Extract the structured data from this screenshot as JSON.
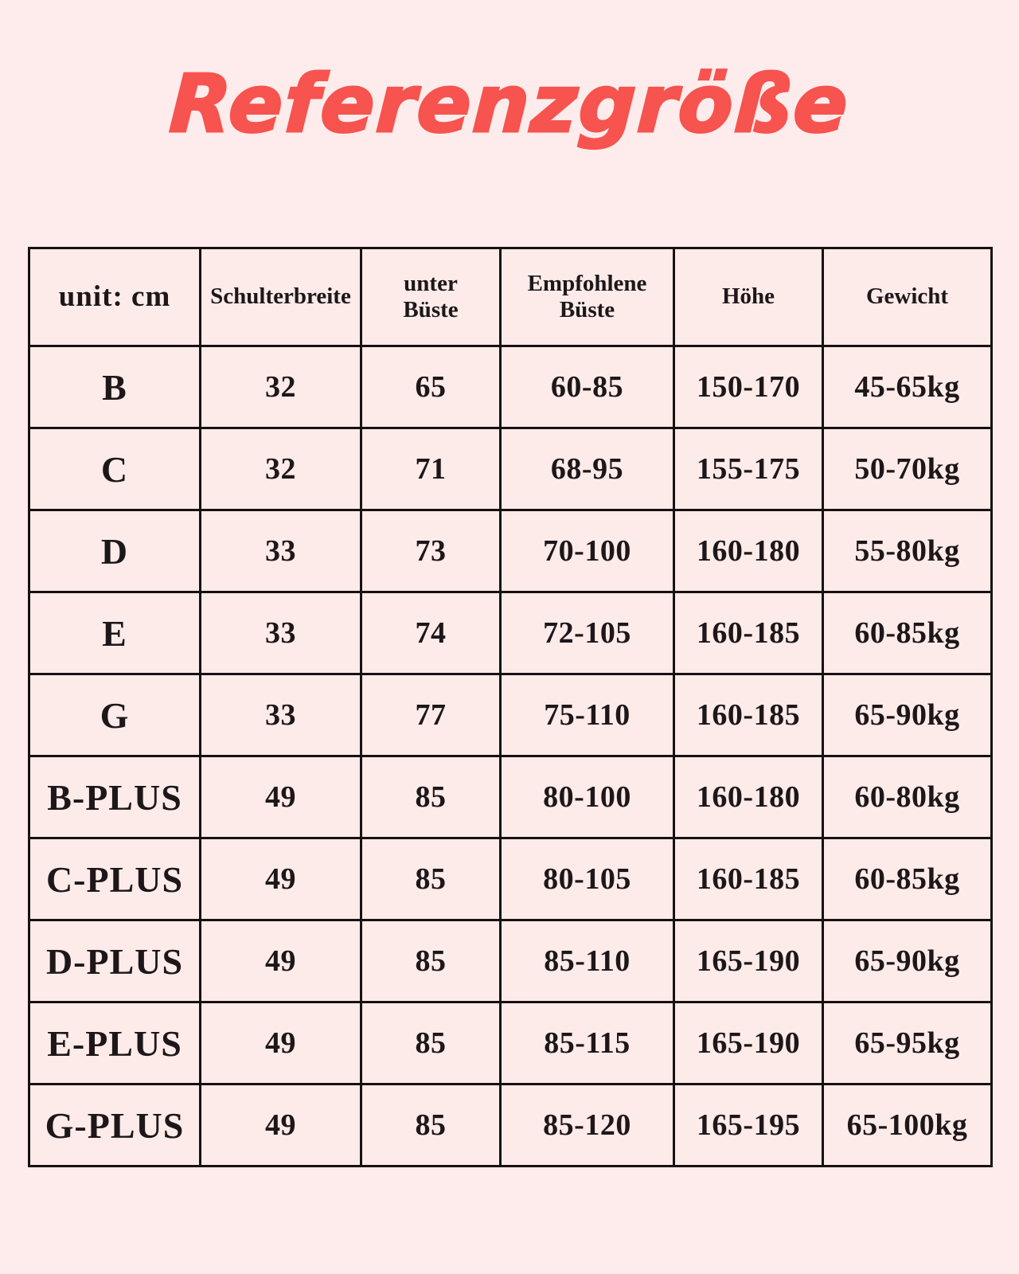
{
  "title": "Referenzgröße",
  "colors": {
    "page_background": "#fdeceb",
    "cell_background": "#fcebe9",
    "title_color": "#f7534f",
    "border_color": "#171112",
    "text_color": "#1d1719"
  },
  "table": {
    "headers": [
      "unit: cm",
      "Schulterbreite",
      "unter\nBüste",
      "Empfohlene\nBüste",
      "Höhe",
      "Gewicht"
    ],
    "rows": [
      [
        "B",
        "32",
        "65",
        "60-85",
        "150-170",
        "45-65kg"
      ],
      [
        "C",
        "32",
        "71",
        "68-95",
        "155-175",
        "50-70kg"
      ],
      [
        "D",
        "33",
        "73",
        "70-100",
        "160-180",
        "55-80kg"
      ],
      [
        "E",
        "33",
        "74",
        "72-105",
        "160-185",
        "60-85kg"
      ],
      [
        "G",
        "33",
        "77",
        "75-110",
        "160-185",
        "65-90kg"
      ],
      [
        "B-PLUS",
        "49",
        "85",
        "80-100",
        "160-180",
        "60-80kg"
      ],
      [
        "C-PLUS",
        "49",
        "85",
        "80-105",
        "160-185",
        "60-85kg"
      ],
      [
        "D-PLUS",
        "49",
        "85",
        "85-110",
        "165-190",
        "65-90kg"
      ],
      [
        "E-PLUS",
        "49",
        "85",
        "85-115",
        "165-190",
        "65-95kg"
      ],
      [
        "G-PLUS",
        "49",
        "85",
        "85-120",
        "165-195",
        "65-100kg"
      ]
    ]
  }
}
